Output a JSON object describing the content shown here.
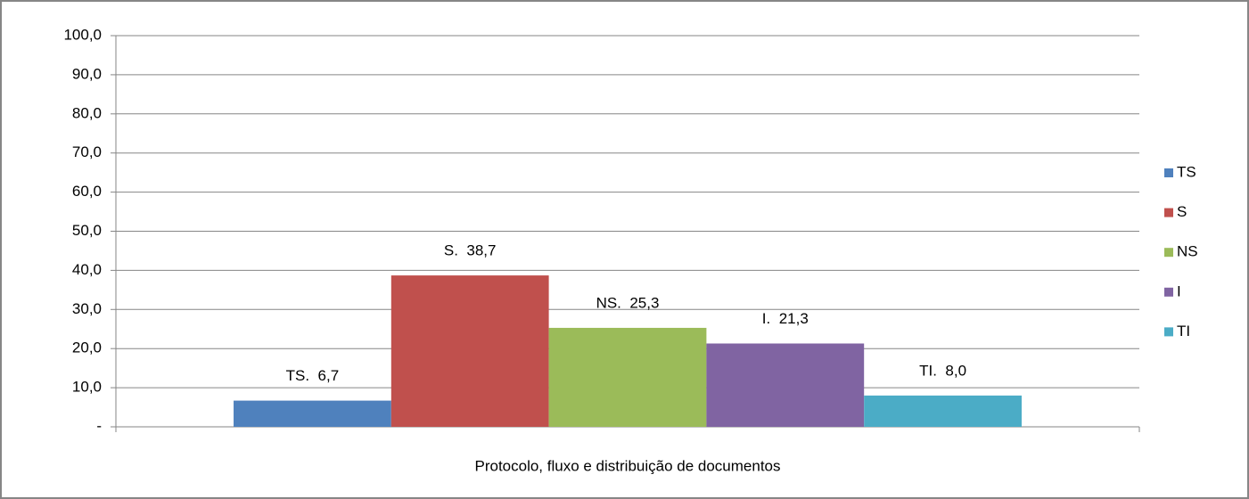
{
  "chart_data": {
    "type": "bar",
    "categories": [
      "Protocolo, fluxo e distribuição de documentos"
    ],
    "series": [
      {
        "name": "TS",
        "color": "#4f81bd",
        "values": [
          6.7
        ],
        "value_labels": [
          "TS.  6,7"
        ]
      },
      {
        "name": "S",
        "color": "#c0504d",
        "values": [
          38.7
        ],
        "value_labels": [
          "S.  38,7"
        ]
      },
      {
        "name": "NS",
        "color": "#9bbb59",
        "values": [
          25.3
        ],
        "value_labels": [
          "NS.  25,3"
        ]
      },
      {
        "name": "I",
        "color": "#8064a2",
        "values": [
          21.3
        ],
        "value_labels": [
          "I.  21,3"
        ]
      },
      {
        "name": "TI",
        "color": "#4bacc6",
        "values": [
          8.0
        ],
        "value_labels": [
          "TI.  8,0"
        ]
      }
    ],
    "ylim": [
      0,
      100
    ],
    "yticks": [
      {
        "value": 0,
        "label": "-"
      },
      {
        "value": 10,
        "label": "10,0"
      },
      {
        "value": 20,
        "label": "20,0"
      },
      {
        "value": 30,
        "label": "30,0"
      },
      {
        "value": 40,
        "label": "40,0"
      },
      {
        "value": 50,
        "label": "50,0"
      },
      {
        "value": 60,
        "label": "60,0"
      },
      {
        "value": 70,
        "label": "70,0"
      },
      {
        "value": 80,
        "label": "80,0"
      },
      {
        "value": 90,
        "label": "90,0"
      },
      {
        "value": 100,
        "label": "100,0"
      }
    ],
    "grid": true,
    "legend": "right"
  }
}
